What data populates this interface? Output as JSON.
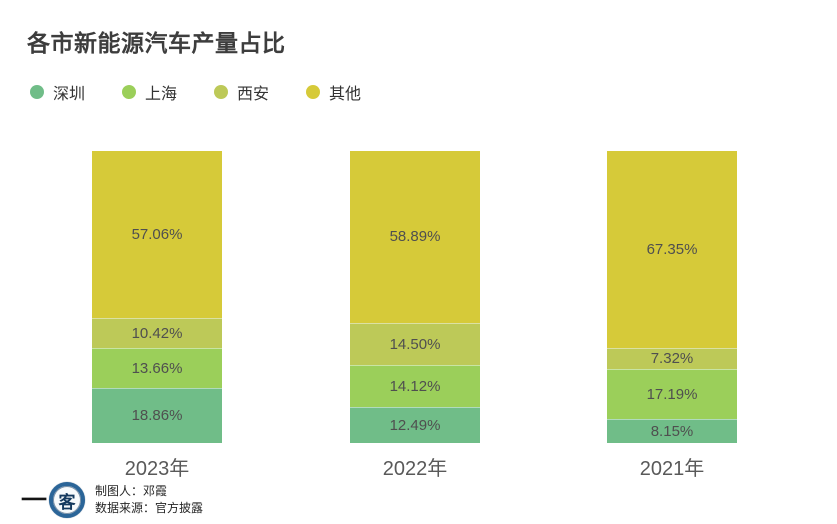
{
  "title": "各市新能源汽车产量占比",
  "chart_data": {
    "type": "bar",
    "stacked": true,
    "orientation": "vertical",
    "title": "各市新能源汽车产量占比",
    "categories": [
      "2023年",
      "2022年",
      "2021年"
    ],
    "series": [
      {
        "name": "深圳",
        "color": "#70bd88",
        "values": [
          18.86,
          12.49,
          8.15
        ]
      },
      {
        "name": "上海",
        "color": "#9bcf5a",
        "values": [
          13.66,
          14.12,
          17.19
        ]
      },
      {
        "name": "西安",
        "color": "#bdc958",
        "values": [
          10.42,
          14.5,
          7.32
        ]
      },
      {
        "name": "其他",
        "color": "#d6ca39",
        "values": [
          57.06,
          58.89,
          67.35
        ]
      }
    ],
    "stack_order_bottom_to_top": [
      "深圳",
      "上海",
      "西安",
      "其他"
    ],
    "value_format": "percent_two_decimals",
    "labels_inside_segments": true,
    "legend_position": "top-left",
    "ylim": [
      0,
      100
    ],
    "grid": false,
    "axes_hidden": true
  },
  "footer": {
    "logo_text_left": "一",
    "logo_text_circle": "客",
    "credits": [
      "制图人：邓霞",
      "数据来源：官方披露"
    ]
  }
}
